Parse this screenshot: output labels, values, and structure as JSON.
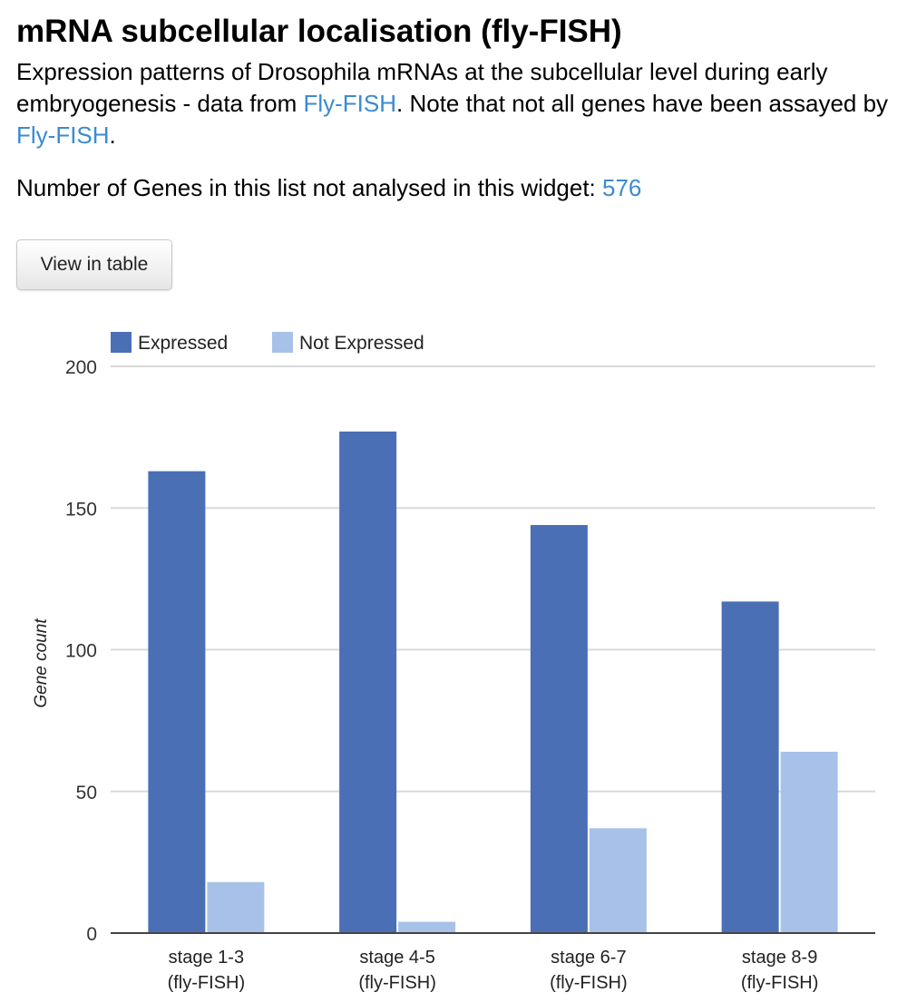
{
  "header": {
    "title": "mRNA subcellular localisation (fly-FISH)",
    "description_part1": "Expression patterns of Drosophila mRNAs at the subcellular level during early embryogenesis - data from ",
    "link1": "Fly-FISH",
    "description_part2": ". Note that not all genes have been assayed by ",
    "link2": "Fly-FISH",
    "description_part3": ".",
    "not_analysed_label": "Number of Genes in this list not analysed in this widget: ",
    "not_analysed_count": "576"
  },
  "toolbar": {
    "view_table_label": "View in table"
  },
  "colors": {
    "expressed": "#4a6fb5",
    "not_expressed": "#a8c1e8",
    "link": "#3b8bd0",
    "grid": "#d9d9d9",
    "axis": "#444444"
  },
  "chart_data": {
    "type": "bar",
    "categories": [
      [
        "stage 1-3",
        "(fly-FISH)"
      ],
      [
        "stage 4-5",
        "(fly-FISH)"
      ],
      [
        "stage 6-7",
        "(fly-FISH)"
      ],
      [
        "stage 8-9",
        "(fly-FISH)"
      ]
    ],
    "series": [
      {
        "name": "Expressed",
        "values": [
          163,
          177,
          144,
          117
        ]
      },
      {
        "name": "Not Expressed",
        "values": [
          18,
          4,
          37,
          64
        ]
      }
    ],
    "xlabel": "",
    "ylabel": "Gene count",
    "ylim": [
      0,
      200
    ],
    "yticks": [
      0,
      50,
      100,
      150,
      200
    ],
    "grid": true,
    "legend_position": "top-left"
  }
}
